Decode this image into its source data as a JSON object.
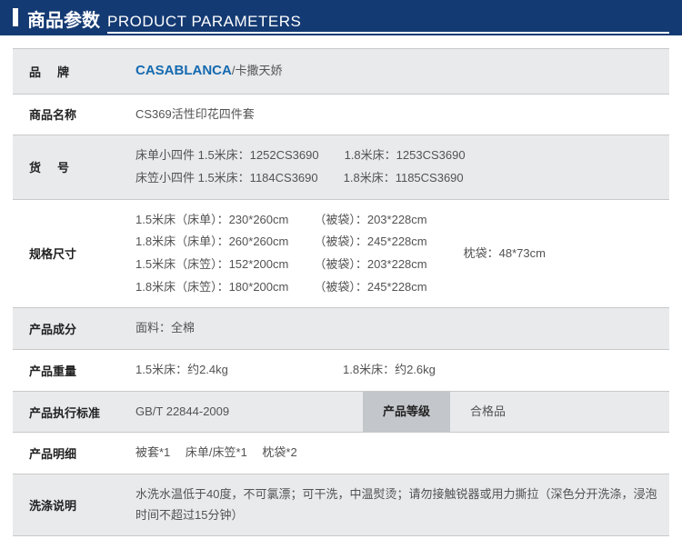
{
  "header": {
    "cn": "商品参数",
    "en": "PRODUCT PARAMETERS"
  },
  "labels": {
    "brand": "品牌",
    "name": "商品名称",
    "sku": "货号",
    "size": "规格尺寸",
    "material": "产品成分",
    "weight": "产品重量",
    "standard": "产品执行标准",
    "grade": "产品等级",
    "detail": "产品明细",
    "wash": "洗涤说明"
  },
  "brand": {
    "en": "CASABLANCA",
    "sep": "/",
    "cn": "卡撒天娇"
  },
  "name": "CS369活性印花四件套",
  "sku": {
    "line1a": "床单小四件 1.5米床：1252CS3690",
    "line1b": "1.8米床：1253CS3690",
    "line2a": "床笠小四件 1.5米床：1184CS3690",
    "line2b": "1.8米床：1185CS3690"
  },
  "size": {
    "r1a": "1.5米床（床单）：230*260cm",
    "r1b": "（被袋）：203*228cm",
    "r2a": "1.8米床（床单）：260*260cm",
    "r2b": "（被袋）：245*228cm",
    "r3a": "1.5米床（床笠）：152*200cm",
    "r3b": "（被袋）：203*228cm",
    "r4a": "1.8米床（床笠）：180*200cm",
    "r4b": "（被袋）：245*228cm",
    "pillow": "枕袋：48*73cm"
  },
  "material": "面料：全棉",
  "weight": {
    "a": "1.5米床：约2.4kg",
    "b": "1.8米床：约2.6kg"
  },
  "standard": "GB/T 22844-2009",
  "grade": "合格品",
  "detail": "被套*1　 床单/床笠*1　 枕袋*2",
  "wash": "水洗水温低于40度，不可氯漂；可干洗，中温熨烫；请勿接触锐器或用力撕拉（深色分开洗涤，浸泡时间不超过15分钟）"
}
